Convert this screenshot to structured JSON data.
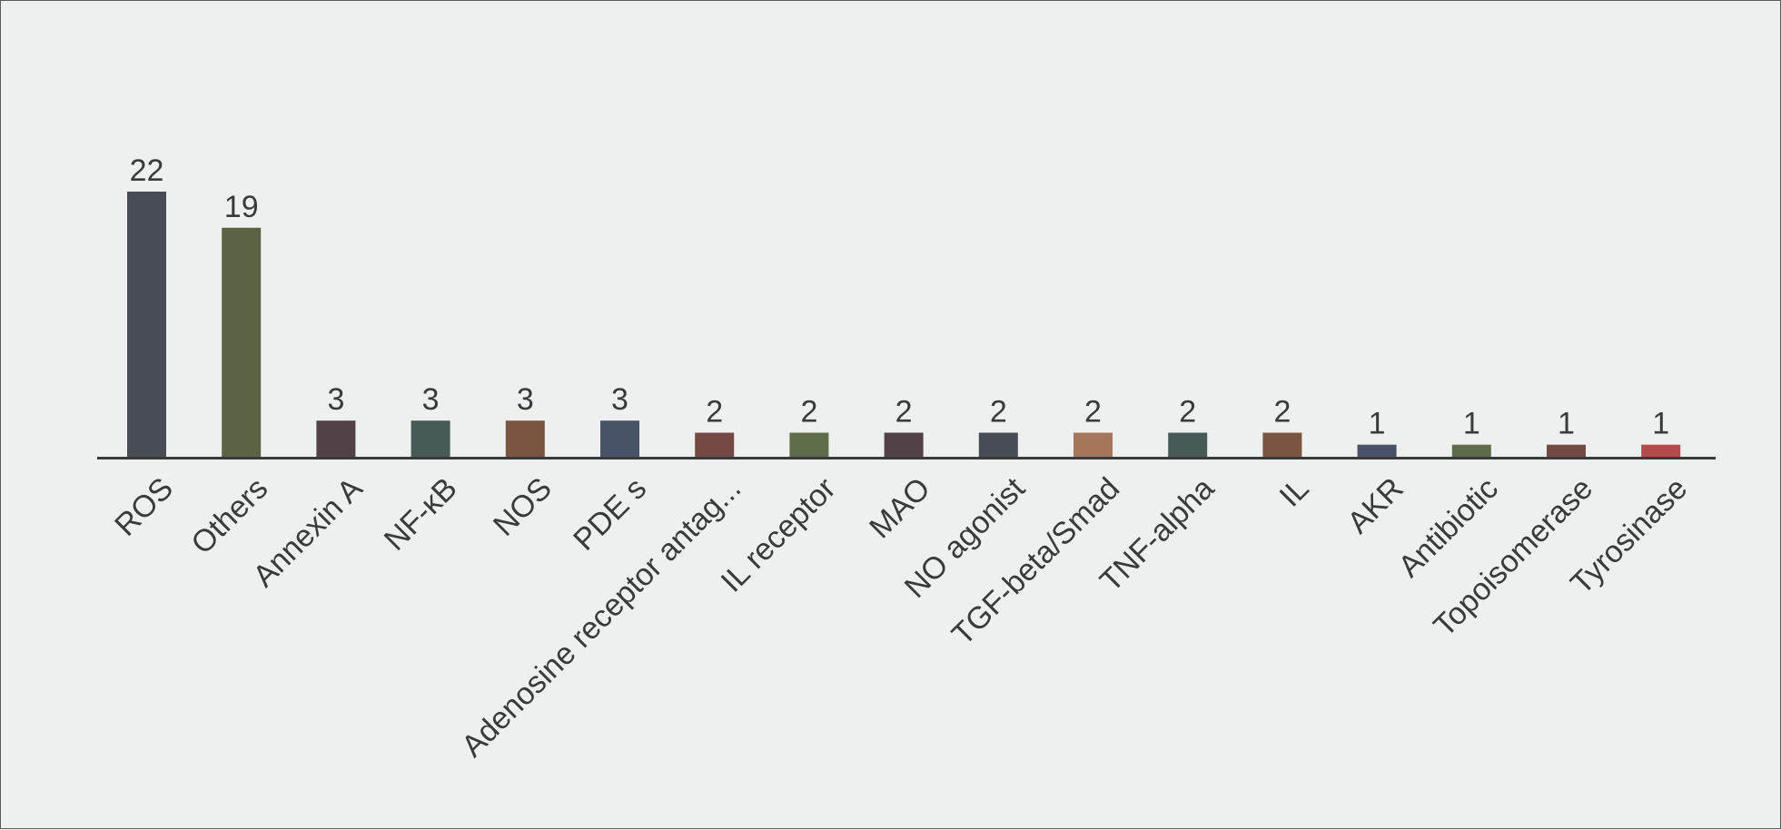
{
  "chart_data": {
    "type": "bar",
    "title": "",
    "xlabel": "",
    "ylabel": "",
    "categories": [
      "ROS",
      "Others",
      "Annexin A",
      "NF-κB",
      "NOS",
      "PDE s",
      "Adenosine receptor antag...",
      "IL receptor",
      "MAO",
      "NO agonist",
      "TGF-beta/Smad",
      "TNF-alpha",
      "IL",
      "AKR",
      "Antibiotic",
      "Topoisomerase",
      "Tyrosinase"
    ],
    "values": [
      22,
      19,
      3,
      3,
      3,
      3,
      2,
      2,
      2,
      2,
      2,
      2,
      2,
      1,
      1,
      1,
      1
    ],
    "bar_colors": [
      "#474c55",
      "#5b6344",
      "#524248",
      "#475a58",
      "#7a5640",
      "#485268",
      "#744843",
      "#5e6c4a",
      "#524248",
      "#474c55",
      "#a5765a",
      "#475a58",
      "#7a5640",
      "#485268",
      "#5e6c4a",
      "#744843",
      "#b44a4a"
    ],
    "ylim": [
      0,
      22
    ],
    "grid": false,
    "legend": "none",
    "axis_color": "#3a3a3a",
    "background": "#eef0ef"
  }
}
